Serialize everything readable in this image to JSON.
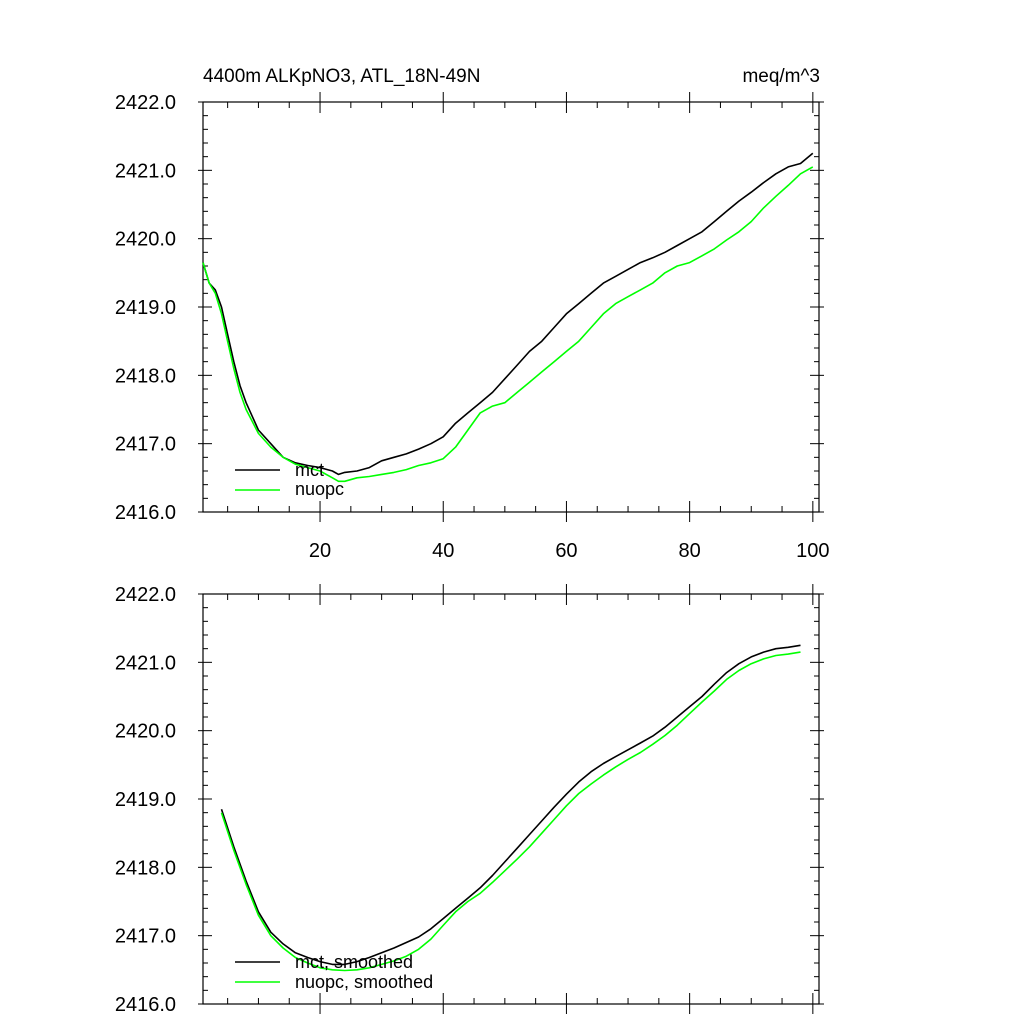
{
  "chart_data": [
    {
      "type": "line",
      "title": "4400m ALKpNO3, ATL_18N-49N",
      "units": "meq/m^3",
      "xlim": [
        1,
        101
      ],
      "ylim": [
        2416.0,
        2422.0
      ],
      "xticks": [
        20,
        40,
        60,
        80,
        100
      ],
      "xtick_labels": [
        "20",
        "40",
        "60",
        "80",
        "100"
      ],
      "yticks": [
        2416.0,
        2417.0,
        2418.0,
        2419.0,
        2420.0,
        2421.0,
        2422.0
      ],
      "ytick_labels": [
        "2416.0",
        "2417.0",
        "2418.0",
        "2419.0",
        "2420.0",
        "2421.0",
        "2422.0"
      ],
      "legend_position": "bottom-left",
      "series": [
        {
          "name": "mct",
          "color": "#000000",
          "x": [
            1,
            2,
            3,
            4,
            5,
            6,
            7,
            8,
            10,
            12,
            14,
            16,
            18,
            20,
            22,
            23,
            24,
            26,
            28,
            30,
            32,
            34,
            36,
            38,
            40,
            42,
            44,
            46,
            48,
            50,
            52,
            54,
            56,
            58,
            60,
            62,
            64,
            66,
            68,
            70,
            72,
            74,
            76,
            78,
            80,
            82,
            84,
            86,
            88,
            90,
            92,
            94,
            96,
            98,
            100
          ],
          "y": [
            2419.65,
            2419.35,
            2419.25,
            2419.0,
            2418.6,
            2418.2,
            2417.85,
            2417.6,
            2417.2,
            2417.0,
            2416.8,
            2416.72,
            2416.68,
            2416.65,
            2416.6,
            2416.55,
            2416.58,
            2416.6,
            2416.65,
            2416.75,
            2416.8,
            2416.85,
            2416.92,
            2417.0,
            2417.1,
            2417.3,
            2417.45,
            2417.6,
            2417.75,
            2417.95,
            2418.15,
            2418.35,
            2418.5,
            2418.7,
            2418.9,
            2419.05,
            2419.2,
            2419.35,
            2419.45,
            2419.55,
            2419.65,
            2419.72,
            2419.8,
            2419.9,
            2420.0,
            2420.1,
            2420.25,
            2420.4,
            2420.55,
            2420.68,
            2420.82,
            2420.95,
            2421.05,
            2421.1,
            2421.25
          ]
        },
        {
          "name": "nuopc",
          "color": "#00ff00",
          "x": [
            1,
            2,
            3,
            4,
            5,
            6,
            7,
            8,
            10,
            12,
            14,
            16,
            18,
            20,
            22,
            23,
            24,
            26,
            28,
            30,
            32,
            34,
            36,
            38,
            40,
            42,
            44,
            46,
            48,
            50,
            52,
            54,
            56,
            58,
            60,
            62,
            64,
            66,
            68,
            70,
            72,
            74,
            76,
            78,
            80,
            82,
            84,
            86,
            88,
            90,
            92,
            94,
            96,
            98,
            100
          ],
          "y": [
            2419.65,
            2419.35,
            2419.2,
            2418.9,
            2418.5,
            2418.1,
            2417.75,
            2417.5,
            2417.15,
            2416.95,
            2416.8,
            2416.7,
            2416.65,
            2416.6,
            2416.5,
            2416.45,
            2416.45,
            2416.5,
            2416.52,
            2416.55,
            2416.58,
            2416.62,
            2416.68,
            2416.72,
            2416.78,
            2416.95,
            2417.2,
            2417.45,
            2417.55,
            2417.6,
            2417.75,
            2417.9,
            2418.05,
            2418.2,
            2418.35,
            2418.5,
            2418.7,
            2418.9,
            2419.05,
            2419.15,
            2419.25,
            2419.35,
            2419.5,
            2419.6,
            2419.65,
            2419.75,
            2419.85,
            2419.98,
            2420.1,
            2420.25,
            2420.45,
            2420.62,
            2420.78,
            2420.95,
            2421.05
          ]
        }
      ]
    },
    {
      "type": "line",
      "title": "",
      "xlim": [
        1,
        101
      ],
      "ylim": [
        2416.0,
        2422.0
      ],
      "xticks": [
        20,
        40,
        60,
        80,
        100
      ],
      "xtick_labels": [],
      "yticks": [
        2416.0,
        2417.0,
        2418.0,
        2419.0,
        2420.0,
        2421.0,
        2422.0
      ],
      "ytick_labels": [
        "2416.0",
        "2417.0",
        "2418.0",
        "2419.0",
        "2420.0",
        "2421.0",
        "2422.0"
      ],
      "legend_position": "bottom-left",
      "series": [
        {
          "name": "mct, smoothed",
          "color": "#000000",
          "x": [
            4,
            6,
            8,
            10,
            12,
            14,
            16,
            18,
            20,
            22,
            24,
            26,
            28,
            30,
            32,
            34,
            36,
            38,
            40,
            42,
            44,
            46,
            48,
            50,
            52,
            54,
            56,
            58,
            60,
            62,
            64,
            66,
            68,
            70,
            72,
            74,
            76,
            78,
            80,
            82,
            84,
            86,
            88,
            90,
            92,
            94,
            96,
            98
          ],
          "y": [
            2418.85,
            2418.3,
            2417.8,
            2417.35,
            2417.05,
            2416.88,
            2416.75,
            2416.68,
            2416.62,
            2416.58,
            2416.58,
            2416.62,
            2416.68,
            2416.75,
            2416.82,
            2416.9,
            2416.98,
            2417.1,
            2417.25,
            2417.4,
            2417.55,
            2417.7,
            2417.88,
            2418.08,
            2418.28,
            2418.48,
            2418.68,
            2418.88,
            2419.07,
            2419.25,
            2419.4,
            2419.52,
            2419.62,
            2419.72,
            2419.82,
            2419.92,
            2420.05,
            2420.2,
            2420.35,
            2420.5,
            2420.68,
            2420.85,
            2420.98,
            2421.08,
            2421.15,
            2421.2,
            2421.22,
            2421.25
          ]
        },
        {
          "name": "nuopc, smoothed",
          "color": "#00ff00",
          "x": [
            4,
            6,
            8,
            10,
            12,
            14,
            16,
            18,
            20,
            22,
            24,
            26,
            28,
            30,
            32,
            34,
            36,
            38,
            40,
            42,
            44,
            46,
            48,
            50,
            52,
            54,
            56,
            58,
            60,
            62,
            64,
            66,
            68,
            70,
            72,
            74,
            76,
            78,
            80,
            82,
            84,
            86,
            88,
            90,
            92,
            94,
            96,
            98
          ],
          "y": [
            2418.8,
            2418.25,
            2417.75,
            2417.3,
            2417.0,
            2416.82,
            2416.68,
            2416.6,
            2416.53,
            2416.5,
            2416.49,
            2416.5,
            2416.53,
            2416.58,
            2416.63,
            2416.7,
            2416.8,
            2416.95,
            2417.15,
            2417.35,
            2417.5,
            2417.62,
            2417.78,
            2417.95,
            2418.12,
            2418.3,
            2418.5,
            2418.7,
            2418.9,
            2419.08,
            2419.22,
            2419.35,
            2419.47,
            2419.58,
            2419.68,
            2419.8,
            2419.93,
            2420.08,
            2420.25,
            2420.42,
            2420.58,
            2420.75,
            2420.88,
            2420.98,
            2421.05,
            2421.1,
            2421.12,
            2421.15
          ]
        }
      ]
    }
  ]
}
